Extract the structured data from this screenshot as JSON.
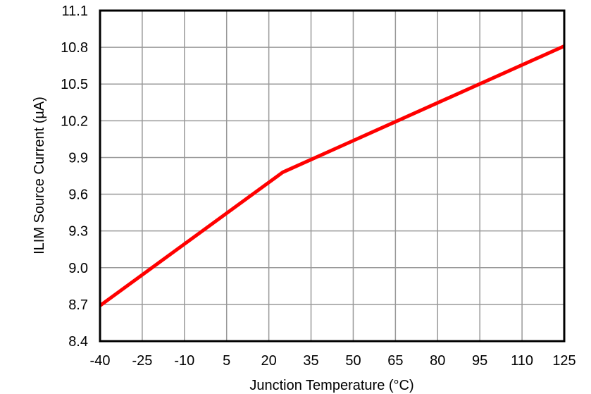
{
  "chart_data": {
    "type": "line",
    "title": "",
    "xlabel": "Junction Temperature (°C)",
    "ylabel": "ILIM Source Current (µA)",
    "xlim": [
      -40,
      125
    ],
    "ylim": [
      8.4,
      11.1
    ],
    "x_ticks": [
      -40,
      -25,
      -10,
      5,
      20,
      35,
      50,
      65,
      80,
      95,
      110,
      125
    ],
    "x_tick_labels": [
      "-40",
      "-25",
      "-10",
      "5",
      "20",
      "35",
      "50",
      "65",
      "80",
      "95",
      "110",
      "125"
    ],
    "y_ticks": [
      8.4,
      8.7,
      9.0,
      9.3,
      9.6,
      9.9,
      10.2,
      10.5,
      10.8,
      11.1
    ],
    "y_tick_labels": [
      "8.4",
      "8.7",
      "9.0",
      "9.3",
      "9.6",
      "9.9",
      "10.2",
      "10.5",
      "10.8",
      "11.1"
    ],
    "grid": true,
    "legend": null,
    "series": [
      {
        "name": "ILIM Source Current",
        "color": "#ff0000",
        "x": [
          -40,
          25,
          125
        ],
        "y": [
          8.69,
          9.78,
          10.81
        ]
      }
    ]
  },
  "colors": {
    "line": "#ff0000",
    "grid": "#999999",
    "frame": "#000000"
  }
}
